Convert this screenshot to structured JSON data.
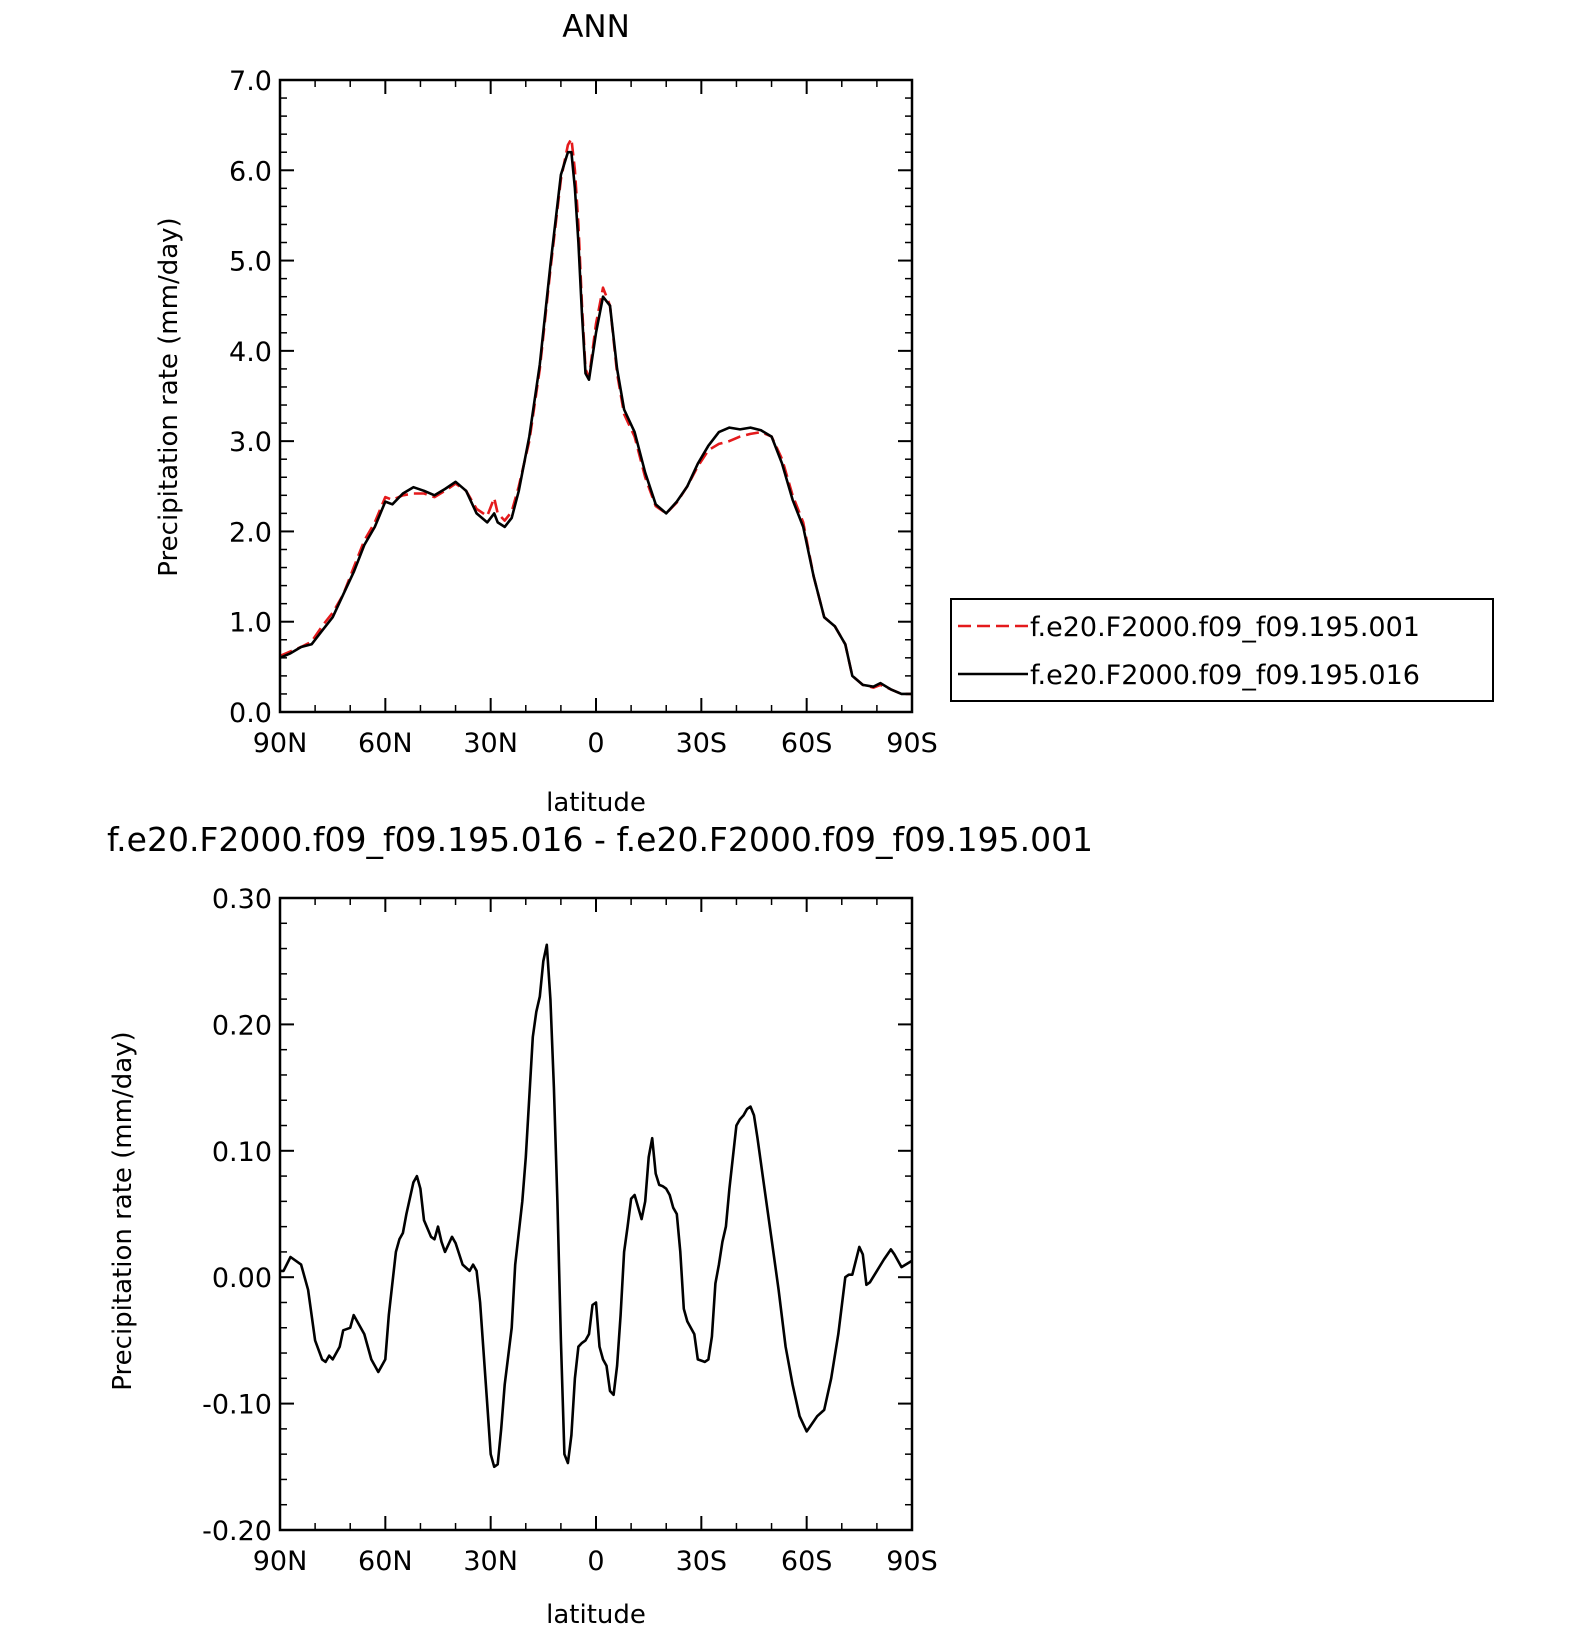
{
  "chart_data": [
    {
      "type": "line",
      "title": "ANN",
      "xlabel": "latitude",
      "ylabel": "Precipitation rate (mm/day)",
      "xlim": [
        90,
        -90
      ],
      "ylim": [
        0,
        7
      ],
      "x_tick_values": [
        90,
        60,
        30,
        0,
        -30,
        -60,
        -90
      ],
      "x_tick_labels": [
        "90N",
        "60N",
        "30N",
        "0",
        "30S",
        "60S",
        "90S"
      ],
      "y_tick_values": [
        0,
        1,
        2,
        3,
        4,
        5,
        6,
        7
      ],
      "y_tick_labels": [
        "0.0",
        "1.0",
        "2.0",
        "3.0",
        "4.0",
        "5.0",
        "6.0",
        "7.0"
      ],
      "grid": false,
      "legend_position": "right",
      "series": [
        {
          "name": "f.e20.F2000.f09_f09.195.001",
          "color": "#e41a1c",
          "style": "dashed",
          "x": [
            90,
            87,
            84,
            81,
            78,
            75,
            72,
            69,
            66,
            63,
            60,
            58,
            55,
            52,
            49,
            46,
            43,
            40,
            37,
            34,
            31,
            29,
            28,
            26,
            24,
            22,
            19,
            16,
            13,
            10,
            8,
            7,
            6,
            5,
            4,
            3,
            2,
            0,
            -2,
            -4,
            -6,
            -8,
            -11,
            -14,
            -17,
            -20,
            -23,
            -26,
            -29,
            -32,
            -35,
            -38,
            -41,
            -44,
            -47,
            -50,
            -53,
            -56,
            -59,
            -62,
            -65,
            -68,
            -71,
            -73,
            -76,
            -79,
            -81,
            -84,
            -87,
            -90
          ],
          "y": [
            0.62,
            0.67,
            0.72,
            0.78,
            0.95,
            1.1,
            1.3,
            1.6,
            1.9,
            2.1,
            2.38,
            2.35,
            2.4,
            2.42,
            2.42,
            2.38,
            2.45,
            2.53,
            2.45,
            2.25,
            2.17,
            2.37,
            2.2,
            2.12,
            2.22,
            2.5,
            3.0,
            3.8,
            4.9,
            5.9,
            6.28,
            6.35,
            6.0,
            5.4,
            4.5,
            3.8,
            3.7,
            4.3,
            4.7,
            4.5,
            3.75,
            3.3,
            3.05,
            2.6,
            2.28,
            2.2,
            2.32,
            2.5,
            2.72,
            2.9,
            2.97,
            3.0,
            3.05,
            3.08,
            3.1,
            3.05,
            2.8,
            2.4,
            2.1,
            1.5,
            1.05,
            0.95,
            0.75,
            0.4,
            0.3,
            0.27,
            0.3,
            0.25,
            0.2,
            0.2
          ]
        },
        {
          "name": "f.e20.F2000.f09_f09.195.016",
          "color": "#000000",
          "style": "solid",
          "x": [
            90,
            87,
            84,
            81,
            78,
            75,
            72,
            69,
            66,
            63,
            60,
            58,
            55,
            52,
            49,
            46,
            43,
            40,
            37,
            34,
            31,
            29,
            28,
            26,
            24,
            22,
            19,
            16,
            13,
            10,
            8,
            7,
            6,
            5,
            4,
            3,
            2,
            0,
            -2,
            -4,
            -6,
            -8,
            -11,
            -14,
            -17,
            -20,
            -23,
            -26,
            -29,
            -32,
            -35,
            -38,
            -41,
            -44,
            -47,
            -50,
            -53,
            -56,
            -59,
            -62,
            -65,
            -68,
            -71,
            -73,
            -76,
            -79,
            -81,
            -84,
            -87,
            -90
          ],
          "y": [
            0.6,
            0.65,
            0.72,
            0.75,
            0.9,
            1.05,
            1.3,
            1.55,
            1.85,
            2.05,
            2.33,
            2.3,
            2.42,
            2.49,
            2.45,
            2.4,
            2.47,
            2.55,
            2.45,
            2.2,
            2.1,
            2.2,
            2.1,
            2.05,
            2.15,
            2.45,
            3.05,
            3.85,
            4.95,
            5.95,
            6.2,
            6.2,
            5.8,
            5.2,
            4.4,
            3.75,
            3.68,
            4.2,
            4.6,
            4.5,
            3.8,
            3.35,
            3.1,
            2.65,
            2.3,
            2.2,
            2.33,
            2.5,
            2.75,
            2.95,
            3.1,
            3.15,
            3.13,
            3.15,
            3.12,
            3.05,
            2.75,
            2.35,
            2.05,
            1.5,
            1.05,
            0.95,
            0.75,
            0.4,
            0.3,
            0.28,
            0.32,
            0.25,
            0.2,
            0.2
          ]
        }
      ]
    },
    {
      "type": "line",
      "title": "f.e20.F2000.f09_f09.195.016 - f.e20.F2000.f09_f09.195.001",
      "xlabel": "latitude",
      "ylabel": "Precipitation rate (mm/day)",
      "xlim": [
        90,
        -90
      ],
      "ylim": [
        -0.2,
        0.3
      ],
      "x_tick_values": [
        90,
        60,
        30,
        0,
        -30,
        -60,
        -90
      ],
      "x_tick_labels": [
        "90N",
        "60N",
        "30N",
        "0",
        "30S",
        "60S",
        "90S"
      ],
      "y_tick_values": [
        -0.2,
        -0.1,
        0,
        0.1,
        0.2,
        0.3
      ],
      "y_tick_labels": [
        "-0.20",
        "-0.10",
        "0.00",
        "0.10",
        "0.20",
        "0.30"
      ],
      "grid": false,
      "series": [
        {
          "color": "#000000",
          "style": "solid",
          "x": [
            90,
            89,
            87,
            84,
            82,
            80,
            78,
            77,
            76,
            75,
            73,
            72,
            70,
            69,
            68,
            66,
            64,
            62,
            60,
            59,
            57,
            56,
            55,
            54,
            52,
            51,
            50,
            49,
            47,
            46,
            45,
            44,
            43,
            41,
            40,
            38,
            36,
            35,
            34,
            33,
            31,
            30,
            29,
            28,
            27,
            26,
            24,
            23,
            21,
            20,
            18,
            17,
            16,
            15,
            14,
            13,
            12,
            11,
            10,
            9,
            8,
            7,
            6,
            5,
            4,
            3,
            2,
            1,
            0,
            -1,
            -2,
            -3,
            -4,
            -5,
            -6,
            -7,
            -8,
            -9,
            -10,
            -11,
            -13,
            -14,
            -15,
            -16,
            -17,
            -18,
            -19,
            -20,
            -21,
            -22,
            -23,
            -24,
            -25,
            -26,
            -28,
            -29,
            -31,
            -32,
            -33,
            -34,
            -35,
            -36,
            -37,
            -38,
            -40,
            -41,
            -42,
            -43,
            -44,
            -45,
            -46,
            -48,
            -50,
            -52,
            -54,
            -56,
            -58,
            -60,
            -61,
            -63,
            -65,
            -67,
            -69,
            -71,
            -72,
            -73,
            -75,
            -76,
            -77,
            -78,
            -80,
            -82,
            -84,
            -85,
            -87,
            -90
          ],
          "y": [
            0.005,
            0.005,
            0.016,
            0.01,
            -0.01,
            -0.05,
            -0.065,
            -0.067,
            -0.062,
            -0.065,
            -0.055,
            -0.042,
            -0.04,
            -0.03,
            -0.035,
            -0.045,
            -0.065,
            -0.075,
            -0.065,
            -0.03,
            0.02,
            0.03,
            0.035,
            0.05,
            0.075,
            0.08,
            0.07,
            0.045,
            0.032,
            0.03,
            0.04,
            0.028,
            0.02,
            0.032,
            0.027,
            0.01,
            0.005,
            0.01,
            0.005,
            -0.02,
            -0.1,
            -0.14,
            -0.15,
            -0.148,
            -0.12,
            -0.085,
            -0.04,
            0.01,
            0.06,
            0.095,
            0.19,
            0.21,
            0.222,
            0.25,
            0.263,
            0.22,
            0.15,
            0.06,
            -0.05,
            -0.14,
            -0.147,
            -0.125,
            -0.08,
            -0.055,
            -0.052,
            -0.05,
            -0.045,
            -0.022,
            -0.02,
            -0.055,
            -0.065,
            -0.07,
            -0.09,
            -0.093,
            -0.07,
            -0.03,
            0.02,
            0.04,
            0.062,
            0.065,
            0.046,
            0.06,
            0.095,
            0.11,
            0.082,
            0.073,
            0.072,
            0.07,
            0.065,
            0.055,
            0.05,
            0.02,
            -0.025,
            -0.035,
            -0.045,
            -0.065,
            -0.067,
            -0.065,
            -0.047,
            -0.005,
            0.01,
            0.028,
            0.04,
            0.07,
            0.12,
            0.125,
            0.128,
            0.133,
            0.135,
            0.128,
            0.11,
            0.07,
            0.03,
            -0.01,
            -0.055,
            -0.085,
            -0.11,
            -0.122,
            -0.118,
            -0.11,
            -0.105,
            -0.08,
            -0.045,
            0.0,
            0.002,
            0.002,
            0.024,
            0.018,
            -0.006,
            -0.004,
            0.005,
            0.014,
            0.022,
            0.018,
            0.008,
            0.013
          ]
        }
      ]
    }
  ]
}
